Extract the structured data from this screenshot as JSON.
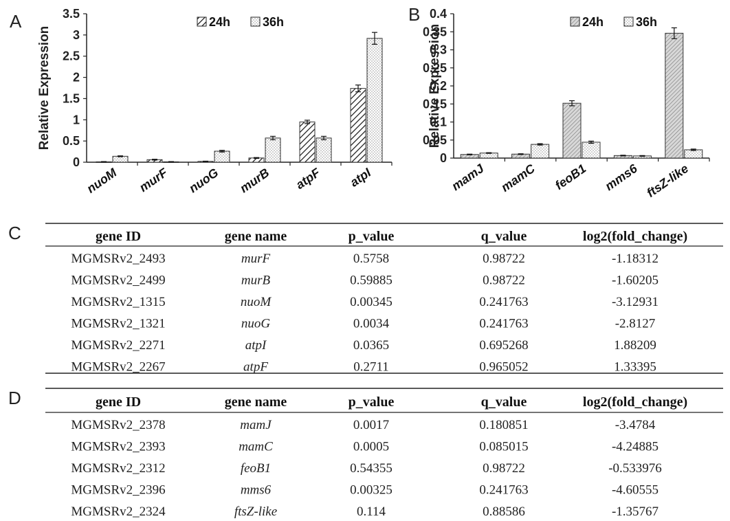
{
  "chart_data": [
    {
      "panel": "A",
      "type": "bar",
      "ylabel": "Relative Expression",
      "ylim": [
        0,
        3.5
      ],
      "yticks": [
        "0",
        "0.5",
        "1",
        "1.5",
        "2",
        "2.5",
        "3",
        "3.5"
      ],
      "categories": [
        "nuoM",
        "murF",
        "nuoG",
        "murB",
        "atpF",
        "atpI"
      ],
      "legend_position": "top-center",
      "series": [
        {
          "name": "24h",
          "values": [
            0.01,
            0.06,
            0.02,
            0.1,
            0.95,
            1.74
          ],
          "errors": [
            0.005,
            0.01,
            0.005,
            0.01,
            0.04,
            0.08
          ]
        },
        {
          "name": "36h",
          "values": [
            0.14,
            0.01,
            0.26,
            0.57,
            0.57,
            2.92
          ],
          "errors": [
            0.01,
            0.005,
            0.02,
            0.04,
            0.04,
            0.14
          ]
        }
      ]
    },
    {
      "panel": "B",
      "type": "bar",
      "ylabel": "Relative Expression",
      "ylim": [
        0,
        0.4
      ],
      "yticks": [
        "0",
        "0.05",
        "0.1",
        "0.15",
        "0.2",
        "0.25",
        "0.3",
        "0.35",
        "0.4"
      ],
      "categories": [
        "mamJ",
        "mamC",
        "feoB1",
        "mms6",
        "ftsZ-like"
      ],
      "legend_position": "top-center",
      "series": [
        {
          "name": "24h",
          "values": [
            0.01,
            0.011,
            0.152,
            0.007,
            0.346
          ],
          "errors": [
            0.001,
            0.001,
            0.007,
            0.001,
            0.015
          ]
        },
        {
          "name": "36h",
          "values": [
            0.014,
            0.038,
            0.044,
            0.006,
            0.023
          ],
          "errors": [
            0.001,
            0.002,
            0.003,
            0.001,
            0.002
          ]
        }
      ]
    }
  ],
  "table_C": {
    "letter": "C",
    "headers": [
      "gene ID",
      "gene name",
      "p_value",
      "q_value",
      "log2(fold_change)"
    ],
    "rows": [
      [
        "MGMSRv2_2493",
        "murF",
        "0.5758",
        "0.98722",
        "-1.18312"
      ],
      [
        "MGMSRv2_2499",
        "murB",
        "0.59885",
        "0.98722",
        "-1.60205"
      ],
      [
        "MGMSRv2_1315",
        "nuoM",
        "0.00345",
        "0.241763",
        "-3.12931"
      ],
      [
        "MGMSRv2_1321",
        "nuoG",
        "0.0034",
        "0.241763",
        "-2.8127"
      ],
      [
        "MGMSRv2_2271",
        "atpI",
        "0.0365",
        "0.695268",
        "1.88209"
      ],
      [
        "MGMSRv2_2267",
        "atpF",
        "0.2711",
        "0.965052",
        "1.33395"
      ]
    ]
  },
  "table_D": {
    "letter": "D",
    "headers": [
      "gene ID",
      "gene name",
      "p_value",
      "q_value",
      "log2(fold_change)"
    ],
    "rows": [
      [
        "MGMSRv2_2378",
        "mamJ",
        "0.0017",
        "0.180851",
        "-3.4784"
      ],
      [
        "MGMSRv2_2393",
        "mamC",
        "0.0005",
        "0.085015",
        "-4.24885"
      ],
      [
        "MGMSRv2_2312",
        "feoB1",
        "0.54355",
        "0.98722",
        "-0.533976"
      ],
      [
        "MGMSRv2_2396",
        "mms6",
        "0.00325",
        "0.241763",
        "-4.60555"
      ],
      [
        "MGMSRv2_2324",
        "ftsZ-like",
        "0.114",
        "0.88586",
        "-1.35767"
      ]
    ]
  }
}
